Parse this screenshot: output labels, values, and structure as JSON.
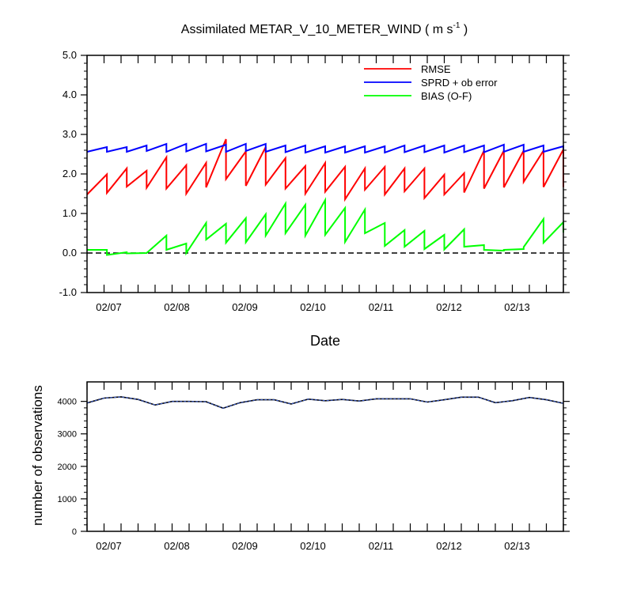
{
  "chart_data": [
    {
      "type": "line",
      "title_main": "Assimilated METAR_V_10_METER_WIND ( m s",
      "title_exp": "-1",
      "title_end": " )",
      "xlabel": "Date",
      "ylim": [
        -1.0,
        5.0
      ],
      "yticks": [
        "-1.0",
        "0.0",
        "1.0",
        "2.0",
        "3.0",
        "4.0",
        "5.0"
      ],
      "x_range": [
        0,
        28
      ],
      "x_tick_labels": [
        {
          "label": "02/07",
          "x": 1
        },
        {
          "label": "02/08",
          "x": 5
        },
        {
          "label": "02/09",
          "x": 9
        },
        {
          "label": "02/10",
          "x": 13
        },
        {
          "label": "02/11",
          "x": 17
        },
        {
          "label": "02/12",
          "x": 21
        },
        {
          "label": "02/13",
          "x": 25
        }
      ],
      "zero_line": 0.0,
      "legend_position": "top-right",
      "series": [
        {
          "name": "RMSE",
          "color": "#ff0000",
          "points": [
            [
              0,
              1.48
            ],
            [
              1,
              1.99
            ],
            [
              1,
              1.52
            ],
            [
              2,
              2.14
            ],
            [
              2,
              1.68
            ],
            [
              3,
              2.08
            ],
            [
              3,
              1.65
            ],
            [
              4,
              2.42
            ],
            [
              4,
              1.63
            ],
            [
              5,
              2.22
            ],
            [
              5,
              1.5
            ],
            [
              6,
              2.28
            ],
            [
              6,
              1.66
            ],
            [
              7,
              2.88
            ],
            [
              7,
              1.87
            ],
            [
              8,
              2.57
            ],
            [
              8,
              1.7
            ],
            [
              9,
              2.68
            ],
            [
              9,
              1.73
            ],
            [
              10,
              2.4
            ],
            [
              10,
              1.63
            ],
            [
              11,
              2.2
            ],
            [
              11,
              1.5
            ],
            [
              12,
              2.28
            ],
            [
              12,
              1.55
            ],
            [
              13,
              2.18
            ],
            [
              13,
              1.36
            ],
            [
              14,
              2.14
            ],
            [
              14,
              1.6
            ],
            [
              15,
              2.18
            ],
            [
              15,
              1.48
            ],
            [
              16,
              2.14
            ],
            [
              16,
              1.56
            ],
            [
              17,
              2.14
            ],
            [
              17,
              1.39
            ],
            [
              18,
              1.98
            ],
            [
              18,
              1.48
            ],
            [
              19,
              2.02
            ],
            [
              19,
              1.53
            ],
            [
              20,
              2.59
            ],
            [
              20,
              1.63
            ],
            [
              21,
              2.59
            ],
            [
              21,
              1.66
            ],
            [
              22,
              2.59
            ],
            [
              22,
              1.8
            ],
            [
              23,
              2.59
            ],
            [
              23,
              1.67
            ],
            [
              24,
              2.62
            ],
            [
              24,
              1.67
            ]
          ]
        },
        {
          "name": "SPRD + ob error",
          "color": "#0000ff",
          "points": [
            [
              0,
              2.56
            ],
            [
              1,
              2.68
            ],
            [
              1,
              2.56
            ],
            [
              2,
              2.68
            ],
            [
              2,
              2.56
            ],
            [
              3,
              2.72
            ],
            [
              3,
              2.58
            ],
            [
              4,
              2.76
            ],
            [
              4,
              2.56
            ],
            [
              5,
              2.76
            ],
            [
              5,
              2.57
            ],
            [
              6,
              2.76
            ],
            [
              6,
              2.57
            ],
            [
              7,
              2.74
            ],
            [
              7,
              2.56
            ],
            [
              8,
              2.76
            ],
            [
              8,
              2.58
            ],
            [
              9,
              2.76
            ],
            [
              9,
              2.56
            ],
            [
              10,
              2.72
            ],
            [
              10,
              2.55
            ],
            [
              11,
              2.72
            ],
            [
              11,
              2.54
            ],
            [
              12,
              2.7
            ],
            [
              12,
              2.54
            ],
            [
              13,
              2.7
            ],
            [
              13,
              2.54
            ],
            [
              14,
              2.7
            ],
            [
              14,
              2.54
            ],
            [
              15,
              2.7
            ],
            [
              15,
              2.54
            ],
            [
              16,
              2.72
            ],
            [
              16,
              2.55
            ],
            [
              17,
              2.72
            ],
            [
              17,
              2.55
            ],
            [
              18,
              2.72
            ],
            [
              18,
              2.54
            ],
            [
              19,
              2.72
            ],
            [
              19,
              2.55
            ],
            [
              20,
              2.72
            ],
            [
              20,
              2.55
            ],
            [
              21,
              2.74
            ],
            [
              21,
              2.56
            ],
            [
              22,
              2.74
            ],
            [
              22,
              2.56
            ],
            [
              23,
              2.72
            ],
            [
              23,
              2.56
            ],
            [
              24,
              2.7
            ],
            [
              24,
              2.62
            ]
          ]
        },
        {
          "name": "BIAS (O-F)",
          "color": "#00ff00",
          "points": [
            [
              0,
              0.08
            ],
            [
              1,
              0.08
            ],
            [
              1,
              -0.05
            ],
            [
              2,
              0.02
            ],
            [
              2,
              -0.01
            ],
            [
              3,
              0.0
            ],
            [
              3,
              0.0
            ],
            [
              4,
              0.44
            ],
            [
              4,
              0.08
            ],
            [
              5,
              0.24
            ],
            [
              5,
              0.0
            ],
            [
              6,
              0.76
            ],
            [
              6,
              0.34
            ],
            [
              7,
              0.74
            ],
            [
              7,
              0.26
            ],
            [
              8,
              0.88
            ],
            [
              8,
              0.27
            ],
            [
              9,
              0.98
            ],
            [
              9,
              0.44
            ],
            [
              10,
              1.25
            ],
            [
              10,
              0.5
            ],
            [
              11,
              1.22
            ],
            [
              11,
              0.44
            ],
            [
              12,
              1.34
            ],
            [
              12,
              0.46
            ],
            [
              13,
              1.14
            ],
            [
              13,
              0.28
            ],
            [
              14,
              1.1
            ],
            [
              14,
              0.5
            ],
            [
              15,
              0.76
            ],
            [
              15,
              0.18
            ],
            [
              16,
              0.58
            ],
            [
              16,
              0.16
            ],
            [
              17,
              0.56
            ],
            [
              17,
              0.1
            ],
            [
              18,
              0.46
            ],
            [
              18,
              0.09
            ],
            [
              19,
              0.6
            ],
            [
              19,
              0.16
            ],
            [
              20,
              0.2
            ],
            [
              20,
              0.08
            ],
            [
              21,
              0.06
            ],
            [
              21,
              0.08
            ],
            [
              22,
              0.1
            ],
            [
              22,
              0.15
            ],
            [
              23,
              0.86
            ],
            [
              23,
              0.26
            ],
            [
              24,
              0.78
            ],
            [
              24,
              0.52
            ]
          ]
        }
      ]
    },
    {
      "type": "line",
      "ylabel": "number of observations",
      "ylim": [
        0,
        4600
      ],
      "yticks": [
        "0",
        "1000",
        "2000",
        "3000",
        "4000"
      ],
      "x_range": [
        0,
        28
      ],
      "x_tick_labels": [
        {
          "label": "02/07",
          "x": 1
        },
        {
          "label": "02/08",
          "x": 5
        },
        {
          "label": "02/09",
          "x": 9
        },
        {
          "label": "02/10",
          "x": 13
        },
        {
          "label": "02/11",
          "x": 17
        },
        {
          "label": "02/12",
          "x": 21
        },
        {
          "label": "02/13",
          "x": 25
        }
      ],
      "series": [
        {
          "color": "#000000",
          "points": [
            [
              0,
              3950
            ],
            [
              1,
              4100
            ],
            [
              2,
              4140
            ],
            [
              3,
              4060
            ],
            [
              4,
              3890
            ],
            [
              5,
              4000
            ],
            [
              6,
              4000
            ],
            [
              7,
              3990
            ],
            [
              8,
              3790
            ],
            [
              9,
              3960
            ],
            [
              10,
              4050
            ],
            [
              11,
              4050
            ],
            [
              12,
              3920
            ],
            [
              13,
              4070
            ],
            [
              14,
              4020
            ],
            [
              15,
              4060
            ],
            [
              16,
              4010
            ],
            [
              17,
              4080
            ],
            [
              18,
              4080
            ],
            [
              19,
              4080
            ],
            [
              20,
              3980
            ],
            [
              21,
              4050
            ],
            [
              22,
              4130
            ],
            [
              23,
              4130
            ],
            [
              24,
              3960
            ],
            [
              25,
              4020
            ],
            [
              26,
              4120
            ],
            [
              27,
              4050
            ],
            [
              28,
              3940
            ]
          ]
        }
      ]
    }
  ]
}
